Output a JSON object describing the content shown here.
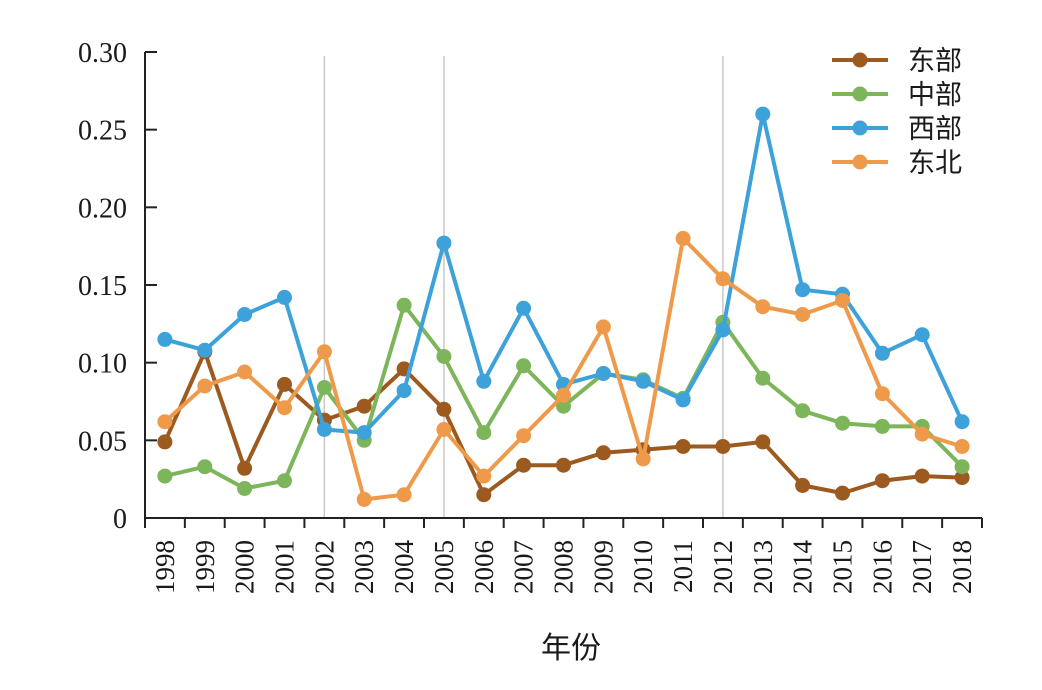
{
  "chart_data": {
    "type": "line",
    "categories": [
      "1998",
      "1999",
      "2000",
      "2001",
      "2002",
      "2003",
      "2004",
      "2005",
      "2006",
      "2007",
      "2008",
      "2009",
      "2010",
      "2011",
      "2012",
      "2013",
      "2014",
      "2015",
      "2016",
      "2017",
      "2018"
    ],
    "series": [
      {
        "name": "东部",
        "color": "#9C5A1E",
        "values": [
          0.049,
          0.107,
          0.032,
          0.086,
          0.063,
          0.072,
          0.096,
          0.07,
          0.015,
          0.034,
          0.034,
          0.042,
          0.044,
          0.046,
          0.046,
          0.049,
          0.021,
          0.016,
          0.024,
          0.027,
          0.026
        ]
      },
      {
        "name": "中部",
        "color": "#7DB55A",
        "values": [
          0.027,
          0.033,
          0.019,
          0.024,
          0.084,
          0.05,
          0.137,
          0.104,
          0.055,
          0.098,
          0.072,
          0.093,
          0.089,
          0.077,
          0.126,
          0.09,
          0.069,
          0.061,
          0.059,
          0.059,
          0.033
        ]
      },
      {
        "name": "西部",
        "color": "#3DA1DA",
        "values": [
          0.115,
          0.108,
          0.131,
          0.142,
          0.057,
          0.055,
          0.082,
          0.177,
          0.088,
          0.135,
          0.086,
          0.093,
          0.088,
          0.076,
          0.121,
          0.26,
          0.147,
          0.144,
          0.106,
          0.118,
          0.062
        ]
      },
      {
        "name": "东北",
        "color": "#EF9A4A",
        "values": [
          0.062,
          0.085,
          0.094,
          0.071,
          0.107,
          0.012,
          0.015,
          0.057,
          0.027,
          0.053,
          0.079,
          0.123,
          0.038,
          0.18,
          0.154,
          0.136,
          0.131,
          0.14,
          0.08,
          0.054,
          0.046
        ]
      }
    ],
    "xlabel": "年份",
    "ylim": [
      0,
      0.3
    ],
    "ytick_labels": [
      "0",
      "0.05",
      "0.10",
      "0.15",
      "0.20",
      "0.25",
      "0.30"
    ],
    "reference_lines": [
      2002,
      2005,
      2012
    ],
    "reference_line_color": "#C8C8C8",
    "axis_color": "#222222",
    "legend": "top-right",
    "grid": false
  }
}
